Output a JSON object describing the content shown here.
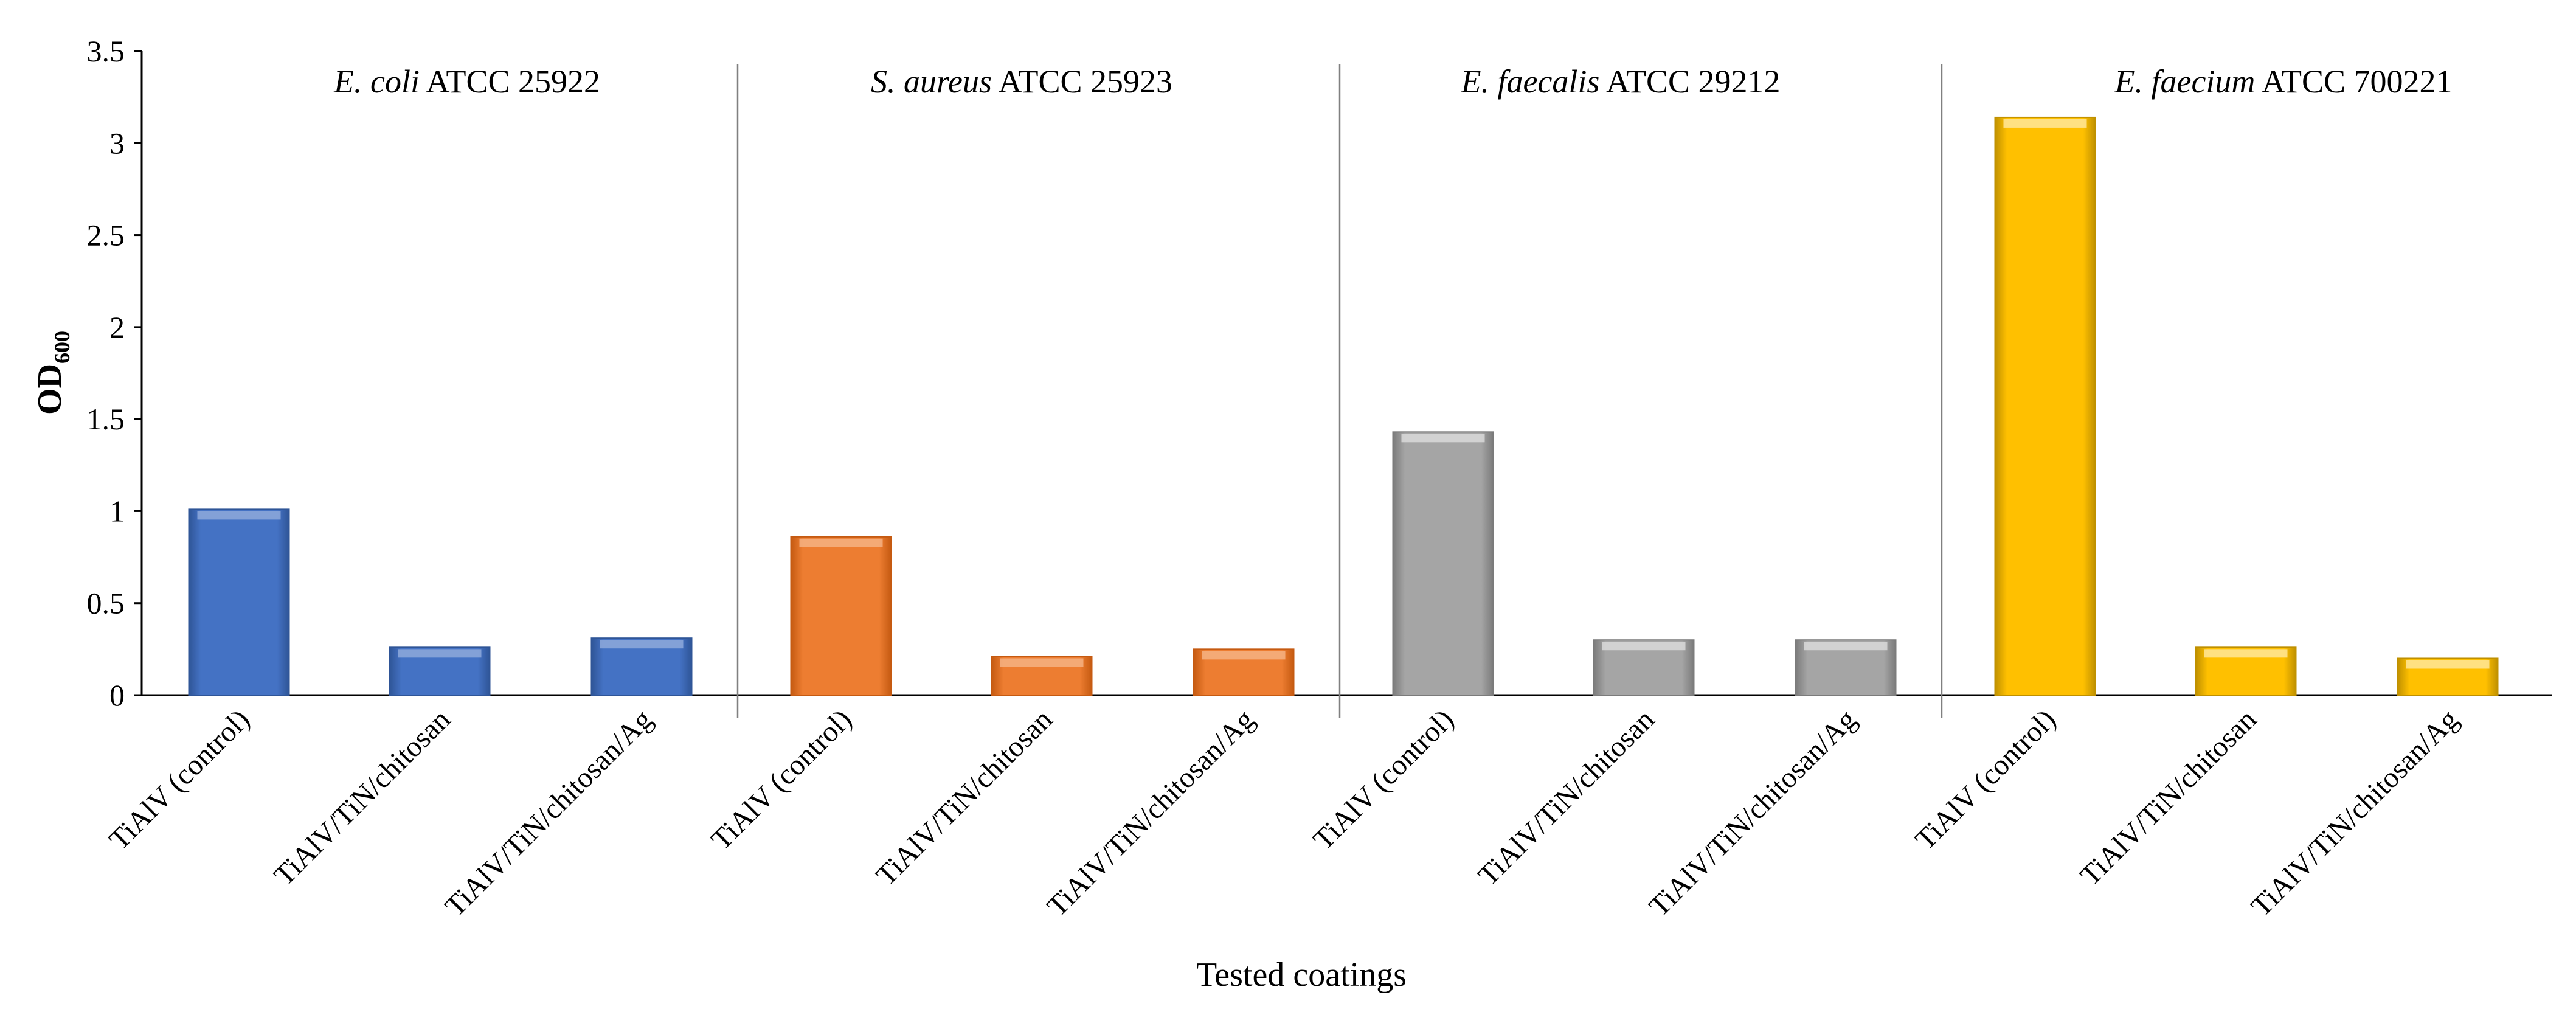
{
  "chart_data": {
    "type": "bar",
    "xlabel": "Tested coatings",
    "ylabel_main": "OD",
    "ylabel_sub": "600",
    "ylim": [
      0,
      3.5
    ],
    "yticks": [
      "0",
      "0.5",
      "1",
      "1.5",
      "2",
      "2.5",
      "3",
      "3.5"
    ],
    "ytick_values": [
      0,
      0.5,
      1,
      1.5,
      2,
      2.5,
      3,
      3.5
    ],
    "grid": false,
    "legend": "none",
    "categories": [
      "TiAlV (control)",
      "TiAlV/TiN/chitosan",
      "TiAlV/TiN/chitosan/Ag"
    ],
    "groups": [
      {
        "organism": "E. coli",
        "strain": "ATCC 25922",
        "color": "#4472C4",
        "dark": "#2F5597",
        "light": "#8EA9DB",
        "values": [
          1.01,
          0.26,
          0.31
        ]
      },
      {
        "organism": "S. aureus",
        "strain": "ATCC 25923",
        "color": "#ED7D31",
        "dark": "#C55A11",
        "light": "#F4B183",
        "values": [
          0.86,
          0.21,
          0.25
        ]
      },
      {
        "organism": "E. faecalis",
        "strain": "ATCC 29212",
        "color": "#A5A5A5",
        "dark": "#7B7B7B",
        "light": "#D9D9D9",
        "values": [
          1.43,
          0.3,
          0.3
        ]
      },
      {
        "organism": "E. faecium",
        "strain": "ATCC 700221",
        "color": "#FFC000",
        "dark": "#BF9000",
        "light": "#FFE699",
        "values": [
          3.14,
          0.26,
          0.2
        ]
      }
    ]
  }
}
